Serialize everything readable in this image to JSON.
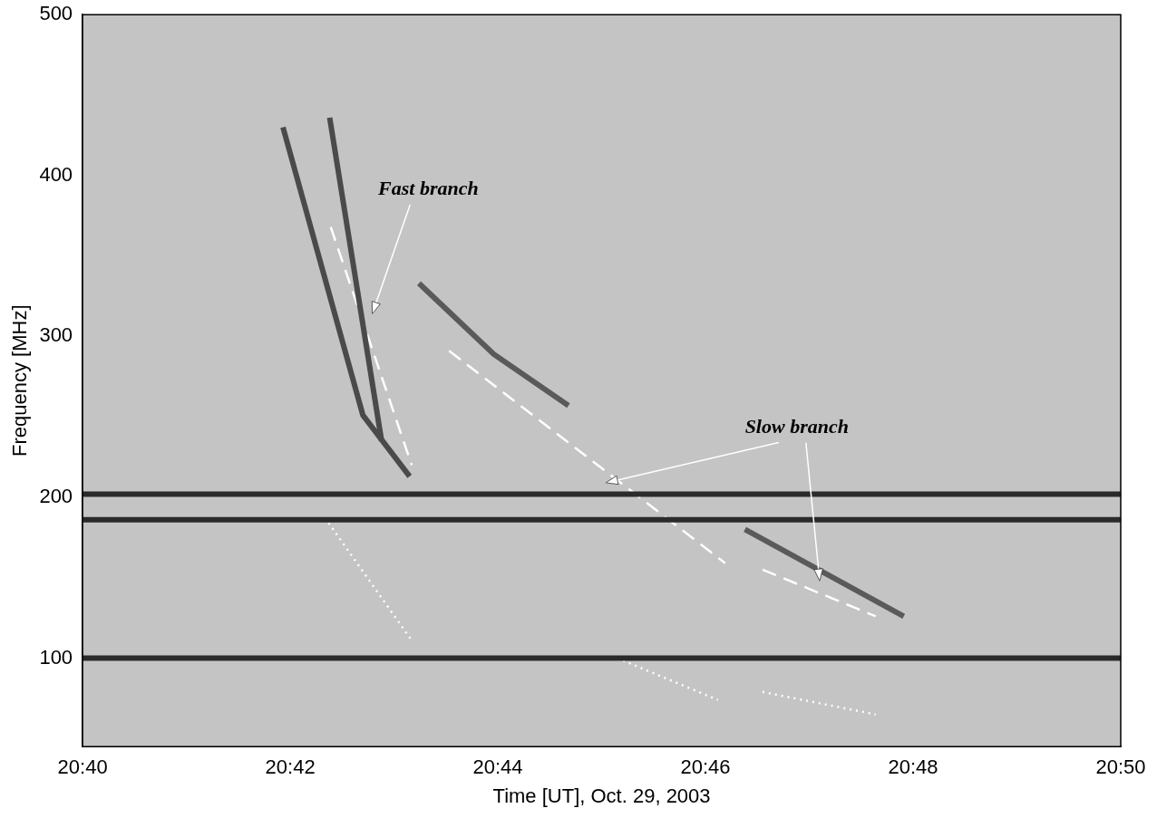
{
  "chart_data": {
    "type": "line",
    "x_label": "Time [UT], Oct. 29, 2003",
    "y_label": "Frequency [MHz]",
    "xlim": [
      40,
      50
    ],
    "xticks": [
      {
        "value": 40,
        "label": "20:40"
      },
      {
        "value": 42,
        "label": "20:42"
      },
      {
        "value": 44,
        "label": "20:44"
      },
      {
        "value": 46,
        "label": "20:46"
      },
      {
        "value": 48,
        "label": "20:48"
      },
      {
        "value": 50,
        "label": "20:50"
      }
    ],
    "ylim": [
      45,
      500
    ],
    "yticks": [
      100,
      200,
      300,
      400,
      500
    ],
    "grid": false,
    "series": [
      {
        "color": "#2a2a2a",
        "line_style": "solid",
        "x": [
          40,
          50
        ],
        "values": [
          100,
          100
        ]
      },
      {
        "color": "#2a2a2a",
        "line_style": "solid",
        "x": [
          40,
          50
        ],
        "values": [
          186,
          186
        ]
      },
      {
        "color": "#2a2a2a",
        "line_style": "solid",
        "x": [
          40,
          50
        ],
        "values": [
          202,
          202
        ]
      },
      {
        "color": "#4a4a4a",
        "line_style": "solid",
        "x": [
          41.93,
          42.7,
          43.15
        ],
        "values": [
          430,
          251,
          213
        ]
      },
      {
        "color": "#4a4a4a",
        "line_style": "solid",
        "x": [
          42.38,
          42.88
        ],
        "values": [
          436,
          235
        ]
      },
      {
        "color": "#5a5a5a",
        "line_style": "solid",
        "x": [
          43.24,
          43.96,
          44.68
        ],
        "values": [
          333,
          289,
          257
        ]
      },
      {
        "color": "#5a5a5a",
        "line_style": "solid",
        "x": [
          46.38,
          47.91
        ],
        "values": [
          180,
          126
        ]
      },
      {
        "color": "#ffffff",
        "line_style": "dashed",
        "x": [
          42.39,
          43.17
        ],
        "values": [
          368,
          220
        ]
      },
      {
        "color": "#ffffff",
        "line_style": "dashed",
        "x": [
          43.53,
          46.19
        ],
        "values": [
          291,
          159
        ]
      },
      {
        "color": "#ffffff",
        "line_style": "dashed",
        "x": [
          46.55,
          47.64
        ],
        "values": [
          155,
          126
        ]
      },
      {
        "color": "#ffffff",
        "line_style": "dotted",
        "x": [
          42.37,
          43.17
        ],
        "values": [
          184,
          111
        ]
      },
      {
        "color": "#ffffff",
        "line_style": "dotted",
        "x": [
          45.15,
          46.12
        ],
        "values": [
          100,
          74
        ]
      },
      {
        "color": "#ffffff",
        "line_style": "dotted",
        "x": [
          46.55,
          47.64
        ],
        "values": [
          79,
          65
        ]
      }
    ],
    "annotations": [
      {
        "text": "Fast branch",
        "x": 43.33,
        "y": 391,
        "arrows": [
          {
            "x": 42.79,
            "y": 314
          }
        ]
      },
      {
        "text": "Slow branch",
        "x": 46.88,
        "y": 243,
        "arrows": [
          {
            "x": 45.04,
            "y": 209
          },
          {
            "x": 47.1,
            "y": 148
          }
        ]
      }
    ]
  }
}
